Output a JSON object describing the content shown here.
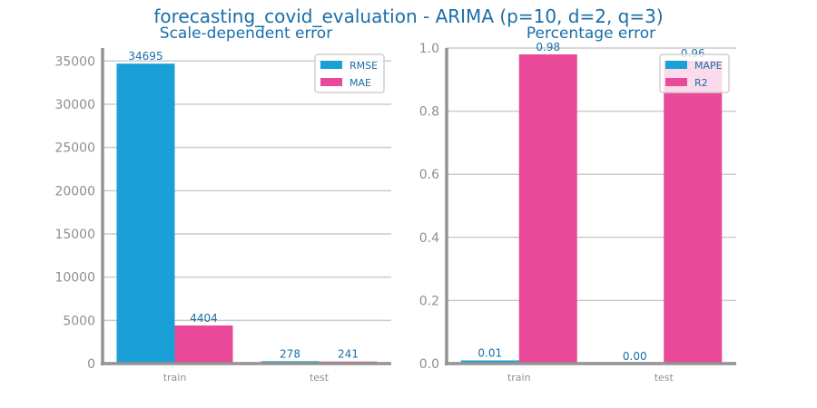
{
  "figure": {
    "title": "forecasting_covid_evaluation - ARIMA (p=10, d=2, q=3)"
  },
  "colors": {
    "series1": "#1a9fd6",
    "series2": "#ea4899",
    "text": "#1a6ea8",
    "tick": "#8f8f8f",
    "grid": "#cccccc",
    "axis": "#939393"
  },
  "chart_data": [
    {
      "type": "bar",
      "title": "Scale-dependent error",
      "categories": [
        "train",
        "test"
      ],
      "series": [
        {
          "name": "RMSE",
          "values": [
            34695,
            278
          ],
          "labels": [
            "34695",
            "278"
          ]
        },
        {
          "name": "MAE",
          "values": [
            4404,
            241
          ],
          "labels": [
            "4404",
            "241"
          ]
        }
      ],
      "xlabel": "",
      "ylabel": "",
      "ylim": [
        0,
        36500
      ],
      "yticks": [
        0,
        5000,
        10000,
        15000,
        20000,
        25000,
        30000,
        35000
      ],
      "ytick_labels": [
        "0",
        "5000",
        "10000",
        "15000",
        "20000",
        "25000",
        "30000",
        "35000"
      ],
      "grid": true,
      "legend": "top-right"
    },
    {
      "type": "bar",
      "title": "Percentage error",
      "categories": [
        "train",
        "test"
      ],
      "series": [
        {
          "name": "MAPE",
          "values": [
            0.01,
            0.0
          ],
          "labels": [
            "0.01",
            "0.00"
          ]
        },
        {
          "name": "R2",
          "values": [
            0.98,
            0.96
          ],
          "labels": [
            "0.98",
            "0.96"
          ]
        }
      ],
      "xlabel": "",
      "ylabel": "",
      "ylim": [
        0,
        1.0
      ],
      "yticks": [
        0.0,
        0.2,
        0.4,
        0.6,
        0.8,
        1.0
      ],
      "ytick_labels": [
        "0.0",
        "0.2",
        "0.4",
        "0.6",
        "0.8",
        "1.0"
      ],
      "grid": true,
      "legend": "top-right"
    }
  ]
}
